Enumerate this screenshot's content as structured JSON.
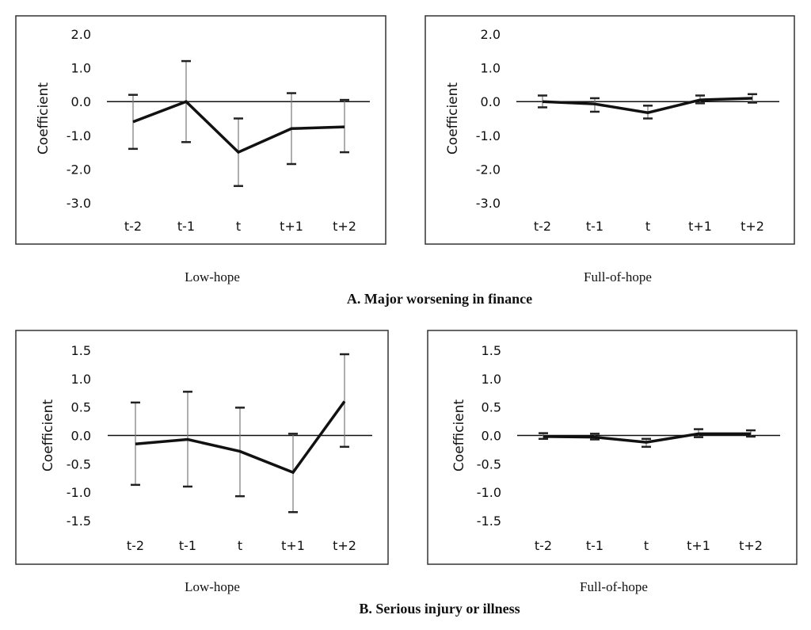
{
  "chart_data": [
    {
      "type": "line",
      "panel": "A",
      "subtitle": "Low-hope",
      "group_title": "A.  Major worsening in finance",
      "ylabel": "Coefficient",
      "categories": [
        "t-2",
        "t-1",
        "t",
        "t+1",
        "t+2"
      ],
      "ylim": [
        -3.0,
        2.0
      ],
      "yticks": [
        "2.0",
        "1.0",
        "0.0",
        "-1.0",
        "-2.0",
        "-3.0"
      ],
      "values": [
        -0.6,
        0.0,
        -1.5,
        -0.8,
        -0.75
      ],
      "ci_low": [
        -1.4,
        -1.2,
        -2.5,
        -1.85,
        -1.5
      ],
      "ci_high": [
        0.2,
        1.2,
        -0.5,
        0.25,
        0.05
      ]
    },
    {
      "type": "line",
      "panel": "A",
      "subtitle": "Full-of-hope",
      "ylabel": "Coefficient",
      "categories": [
        "t-2",
        "t-1",
        "t",
        "t+1",
        "t+2"
      ],
      "ylim": [
        -3.0,
        2.0
      ],
      "yticks": [
        "2.0",
        "1.0",
        "0.0",
        "-1.0",
        "-2.0",
        "-3.0"
      ],
      "values": [
        0.0,
        -0.07,
        -0.33,
        0.05,
        0.1
      ],
      "ci_low": [
        -0.17,
        -0.3,
        -0.5,
        -0.05,
        -0.03
      ],
      "ci_high": [
        0.18,
        0.1,
        -0.12,
        0.18,
        0.22
      ]
    },
    {
      "type": "line",
      "panel": "B",
      "subtitle": "Low-hope",
      "group_title": "B.  Serious injury or illness",
      "ylabel": "Coefficient",
      "categories": [
        "t-2",
        "t-1",
        "t",
        "t+1",
        "t+2"
      ],
      "ylim": [
        -1.5,
        1.5
      ],
      "yticks": [
        "1.5",
        "1.0",
        "0.5",
        "0.0",
        "-0.5",
        "-1.0",
        "-1.5"
      ],
      "values": [
        -0.15,
        -0.07,
        -0.28,
        -0.65,
        0.6
      ],
      "ci_low": [
        -0.87,
        -0.9,
        -1.07,
        -1.35,
        -0.2
      ],
      "ci_high": [
        0.58,
        0.77,
        0.49,
        0.03,
        1.43
      ]
    },
    {
      "type": "line",
      "panel": "B",
      "subtitle": "Full-of-hope",
      "ylabel": "Coefficient",
      "categories": [
        "t-2",
        "t-1",
        "t",
        "t+1",
        "t+2"
      ],
      "ylim": [
        -1.5,
        1.5
      ],
      "yticks": [
        "1.5",
        "1.0",
        "0.5",
        "0.0",
        "-0.5",
        "-1.0",
        "-1.5"
      ],
      "values": [
        -0.02,
        -0.03,
        -0.12,
        0.03,
        0.03
      ],
      "ci_low": [
        -0.06,
        -0.07,
        -0.2,
        -0.03,
        -0.02
      ],
      "ci_high": [
        0.04,
        0.03,
        -0.06,
        0.11,
        0.09
      ]
    }
  ]
}
